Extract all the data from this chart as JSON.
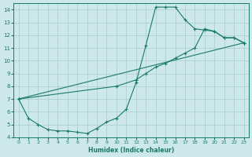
{
  "xlabel": "Humidex (Indice chaleur)",
  "bg_color": "#cce8e8",
  "grid_color": "#aacccc",
  "line_color": "#1a7a6a",
  "xlim": [
    -0.5,
    23.5
  ],
  "ylim": [
    4,
    14.5
  ],
  "xticks": [
    0,
    1,
    2,
    3,
    4,
    5,
    6,
    7,
    8,
    9,
    10,
    11,
    12,
    13,
    14,
    15,
    16,
    17,
    18,
    19,
    20,
    21,
    22,
    23
  ],
  "yticks": [
    4,
    5,
    6,
    7,
    8,
    9,
    10,
    11,
    12,
    13,
    14
  ],
  "line1_x": [
    0,
    1,
    2,
    3,
    4,
    5,
    6,
    7,
    8,
    9,
    10,
    11,
    12,
    13,
    14,
    15,
    16,
    17,
    18,
    19,
    20,
    21,
    22,
    23
  ],
  "line1_y": [
    7.0,
    5.5,
    5.0,
    4.6,
    4.5,
    4.5,
    4.4,
    4.3,
    4.7,
    5.2,
    5.5,
    6.2,
    8.3,
    11.2,
    14.2,
    14.2,
    14.2,
    13.2,
    12.5,
    12.4,
    12.3,
    11.8,
    11.8,
    11.4
  ],
  "line2_x": [
    0,
    23
  ],
  "line2_y": [
    7.0,
    11.4
  ],
  "line3_x": [
    0,
    10,
    12,
    13,
    14,
    15,
    16,
    17,
    18,
    19,
    20,
    21,
    22,
    23
  ],
  "line3_y": [
    7.0,
    8.0,
    8.5,
    9.0,
    9.5,
    9.8,
    10.2,
    10.6,
    11.0,
    12.5,
    12.3,
    11.8,
    11.8,
    11.4
  ]
}
